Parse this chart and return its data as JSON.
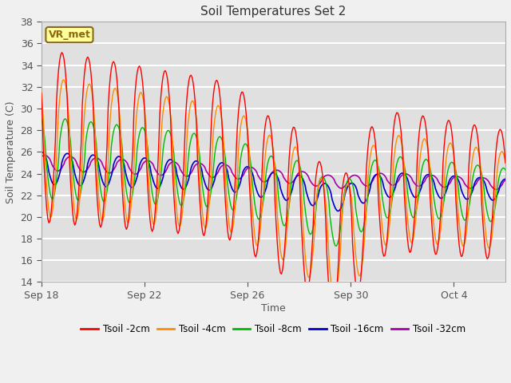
{
  "title": "Soil Temperatures Set 2",
  "xlabel": "Time",
  "ylabel": "Soil Temperature (C)",
  "ylim": [
    14,
    38
  ],
  "yticks": [
    14,
    16,
    18,
    20,
    22,
    24,
    26,
    28,
    30,
    32,
    34,
    36,
    38
  ],
  "plot_bg_color": "#e0e0e0",
  "fig_bg_color": "#f0f0f0",
  "grid_color": "#ffffff",
  "annotation_text": "VR_met",
  "annotation_bg": "#ffff99",
  "annotation_border": "#8B6914",
  "series": [
    {
      "label": "Tsoil -2cm",
      "color": "#ff0000"
    },
    {
      "label": "Tsoil -4cm",
      "color": "#ff8c00"
    },
    {
      "label": "Tsoil -8cm",
      "color": "#00bb00"
    },
    {
      "label": "Tsoil -16cm",
      "color": "#0000cc"
    },
    {
      "label": "Tsoil -32cm",
      "color": "#aa00aa"
    }
  ],
  "figsize": [
    6.4,
    4.8
  ],
  "dpi": 100
}
